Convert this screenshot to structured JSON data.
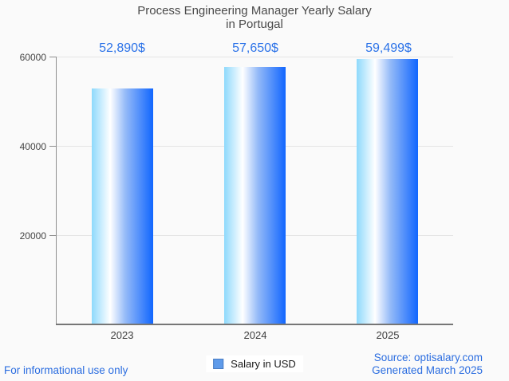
{
  "title": {
    "line1": "Process Engineering Manager Yearly Salary",
    "line2": "in Portugal"
  },
  "chart_data": {
    "type": "bar",
    "title": "Process Engineering Manager Yearly Salary in Portugal",
    "categories": [
      "2023",
      "2024",
      "2025"
    ],
    "values": [
      52890,
      57650,
      59499
    ],
    "value_labels": [
      "52,890$",
      "57,650$",
      "59,499$"
    ],
    "xlabel": "",
    "ylabel": "",
    "ylim": [
      0,
      60000
    ],
    "yticks": [
      20000,
      40000,
      60000
    ],
    "ytick_labels": [
      "20000",
      "40000",
      "60000"
    ],
    "grid": true,
    "legend_position": "bottom",
    "series_name": "Salary in USD",
    "bar_gradient": {
      "direction": "left-to-right",
      "stops": [
        "#8ed9fc",
        "#ffffff",
        "#94baf8",
        "#1166fe"
      ],
      "positions": [
        0,
        30,
        55,
        100
      ]
    }
  },
  "legend": {
    "label": "Salary in USD"
  },
  "footer": {
    "left": "For informational use only",
    "source": "Source: optisalary.com",
    "generated": "Generated March 2025"
  },
  "colors": {
    "background": "#fafafa",
    "title_text": "#4a4a4a",
    "value_label_blue": "#2b72e8",
    "footer_blue": "#2b6de0",
    "gridline": "#e4e4e4",
    "axis_line": "#8f8f8f",
    "legend_swatch_fill": "#5f9bea"
  }
}
